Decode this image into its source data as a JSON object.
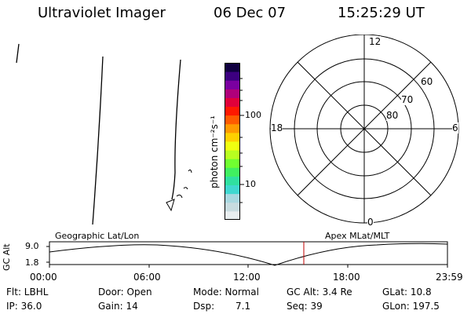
{
  "header": {
    "instrument": "Ultraviolet Imager",
    "date": "06 Dec 07",
    "time": "15:25:29 UT"
  },
  "colorbar": {
    "unit_label": "photon cm⁻²s⁻¹",
    "tick_100": "100",
    "tick_10": "10",
    "colors": [
      "#e8eef0",
      "#c8dce0",
      "#a8d8e0",
      "#40d8d0",
      "#30e0a0",
      "#40f060",
      "#70ff30",
      "#b8ff20",
      "#f0ff10",
      "#ffd000",
      "#ff9a00",
      "#ff5a00",
      "#ff1800",
      "#e0003a",
      "#b0007a",
      "#7a00a0",
      "#3c0080",
      "#100040"
    ]
  },
  "polar": {
    "label_top": "12",
    "label_bottom": "0",
    "label_left": "18",
    "label_right": "6",
    "lat_60": "60",
    "lat_70": "70",
    "lat_80": "80"
  },
  "timeline": {
    "left_caption": "Geographic Lat/Lon",
    "right_caption": "Apex MLat/MLT",
    "axis_label": "GC Alt",
    "y_top": "9.0",
    "y_bottom": "1.8",
    "ticks": [
      "00:00",
      "06:00",
      "12:00",
      "18:00",
      "23:59"
    ],
    "marker_color": "#c00000"
  },
  "status": {
    "filter": "Flt: LBHL",
    "door": "Door: Open",
    "mode": "Mode: Normal",
    "gc_alt": "GC Alt: 3.4 Re",
    "glat": "GLat:  10.8",
    "ip": "IP: 36.0",
    "gain": "Gain: 14",
    "dsp_label": "Dsp:",
    "dsp_value": "7.1",
    "seq": "Seq: 39",
    "glon": "GLon: 197.5"
  }
}
